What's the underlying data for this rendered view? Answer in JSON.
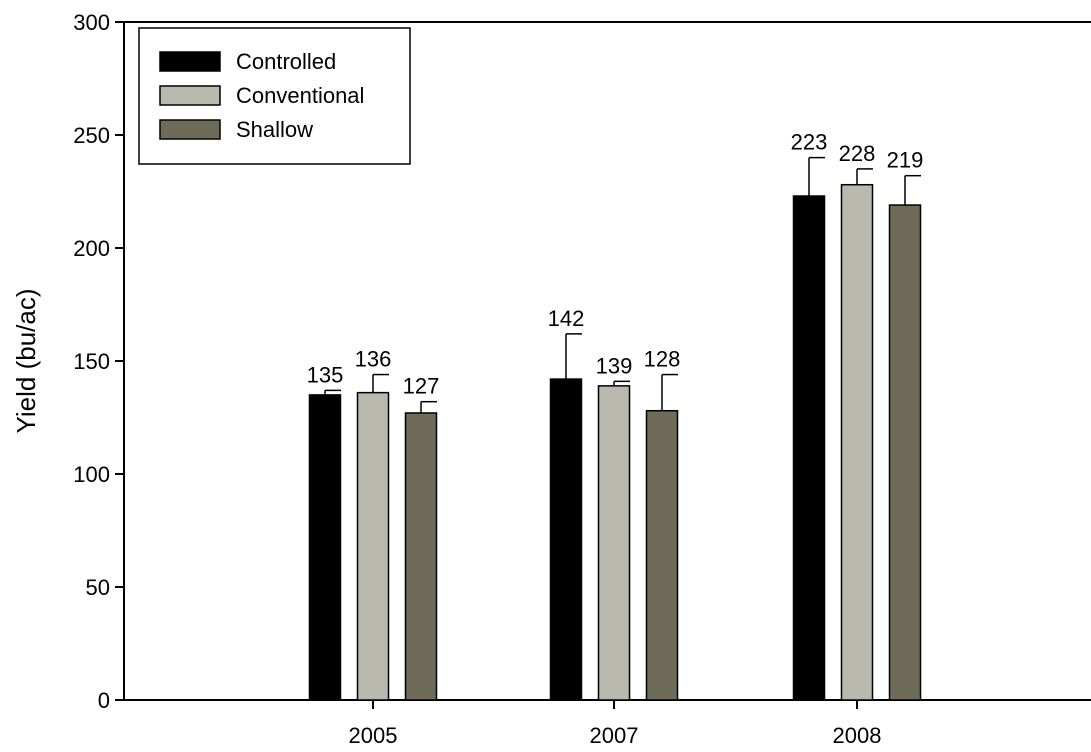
{
  "chart_data": {
    "type": "bar",
    "title": "",
    "xlabel": "",
    "ylabel": "Yield (bu/ac)",
    "ylim": [
      0,
      300
    ],
    "yticks": [
      0,
      50,
      100,
      150,
      200,
      250,
      300
    ],
    "categories": [
      "2005",
      "2007",
      "2008"
    ],
    "series": [
      {
        "name": "Controlled",
        "color": "#000000",
        "values": [
          135,
          142,
          223
        ],
        "errors": [
          2,
          20,
          17
        ],
        "labels": [
          "135",
          "142",
          "223"
        ]
      },
      {
        "name": "Conventional",
        "color": "#b9b9ad",
        "values": [
          136,
          139,
          228
        ],
        "errors": [
          8,
          2,
          7
        ],
        "labels": [
          "136",
          "139",
          "228"
        ]
      },
      {
        "name": "Shallow",
        "color": "#6e6c58",
        "values": [
          127,
          128,
          219
        ],
        "errors": [
          5,
          16,
          13
        ],
        "labels": [
          "127",
          "128",
          "219"
        ]
      }
    ],
    "grid": false,
    "legend_position": "top-left"
  }
}
